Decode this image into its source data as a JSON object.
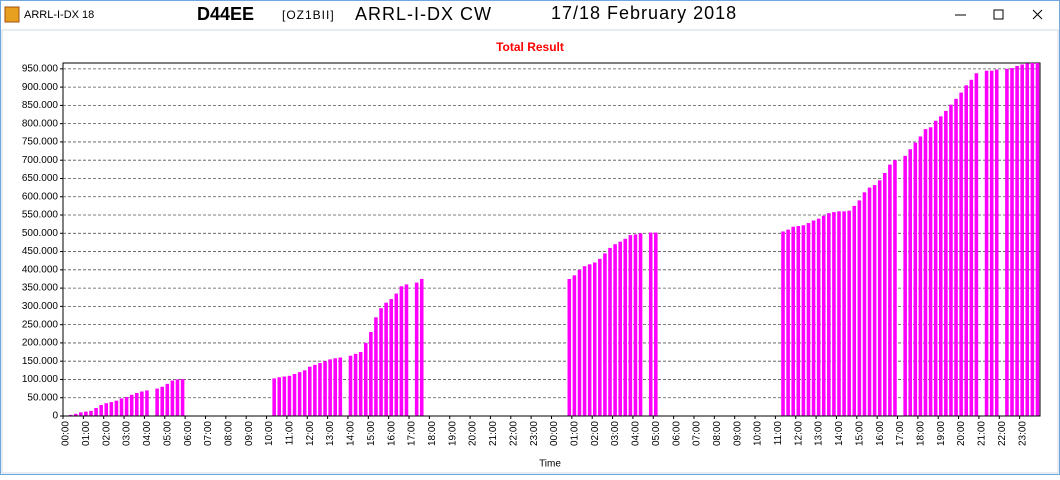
{
  "window": {
    "app": "ARRL-I-DX 18",
    "call": "D44EE",
    "operator": "[OZ1BII]",
    "contest": "ARRL-I-DX CW",
    "date": "17/18 February 2018"
  },
  "chart_data": {
    "type": "bar",
    "title": "Total Result",
    "x_label": "Time",
    "color": "#ff00ff",
    "grid": true,
    "ylim": [
      0,
      966000
    ],
    "yticks": [
      0,
      {
        "value": 50000,
        "label": "50.000"
      },
      {
        "value": 100000,
        "label": "100.000"
      },
      {
        "value": 150000,
        "label": "150.000"
      },
      {
        "value": 200000,
        "label": "200.000"
      },
      {
        "value": 250000,
        "label": "250.000"
      },
      {
        "value": 300000,
        "label": "300.000"
      },
      {
        "value": 350000,
        "label": "350.000"
      },
      {
        "value": 400000,
        "label": "400.000"
      },
      {
        "value": 450000,
        "label": "450.000"
      },
      {
        "value": 500000,
        "label": "500.000"
      },
      {
        "value": 550000,
        "label": "550.000"
      },
      {
        "value": 600000,
        "label": "600.000"
      },
      {
        "value": 650000,
        "label": "650.000"
      },
      {
        "value": 700000,
        "label": "700.000"
      },
      {
        "value": 750000,
        "label": "750.000"
      },
      {
        "value": 800000,
        "label": "800.000"
      },
      {
        "value": 850000,
        "label": "850.000"
      },
      {
        "value": 900000,
        "label": "900.000"
      },
      {
        "value": 950000,
        "label": "950.000"
      }
    ],
    "categories": [
      "00:00",
      null,
      null,
      null,
      "01:00",
      null,
      null,
      null,
      "02:00",
      null,
      null,
      null,
      "03:00",
      null,
      null,
      null,
      "04:00",
      null,
      null,
      null,
      "05:00",
      null,
      null,
      null,
      "06:00",
      null,
      null,
      null,
      "07:00",
      null,
      null,
      null,
      "08:00",
      null,
      null,
      null,
      "09:00",
      null,
      null,
      null,
      "10:00",
      null,
      null,
      null,
      "11:00",
      null,
      null,
      null,
      "12:00",
      null,
      null,
      null,
      "13:00",
      null,
      null,
      null,
      "14:00",
      null,
      null,
      null,
      "15:00",
      null,
      null,
      null,
      "16:00",
      null,
      null,
      null,
      "17:00",
      null,
      null,
      null,
      "18:00",
      null,
      null,
      null,
      "19:00",
      null,
      null,
      null,
      "20:00",
      null,
      null,
      null,
      "21:00",
      null,
      null,
      null,
      "22:00",
      null,
      null,
      null,
      "23:00",
      null,
      null,
      null,
      "00:00",
      null,
      null,
      null,
      "01:00",
      null,
      null,
      null,
      "02:00",
      null,
      null,
      null,
      "03:00",
      null,
      null,
      null,
      "04:00",
      null,
      null,
      null,
      "05:00",
      null,
      null,
      null,
      "06:00",
      null,
      null,
      null,
      "07:00",
      null,
      null,
      null,
      "08:00",
      null,
      null,
      null,
      "09:00",
      null,
      null,
      null,
      "10:00",
      null,
      null,
      null,
      "11:00",
      null,
      null,
      null,
      "12:00",
      null,
      null,
      null,
      "13:00",
      null,
      null,
      null,
      "14:00",
      null,
      null,
      null,
      "15:00",
      null,
      null,
      null,
      "16:00",
      null,
      null,
      null,
      "17:00",
      null,
      null,
      null,
      "18:00",
      null,
      null,
      null,
      "19:00",
      null,
      null,
      null,
      "20:00",
      null,
      null,
      null,
      "21:00",
      null,
      null,
      null,
      "22:00",
      null,
      null,
      null,
      "23:00",
      null,
      null,
      null
    ],
    "values": [
      null,
      3000,
      6000,
      10000,
      12000,
      14000,
      22000,
      30000,
      35000,
      38000,
      42000,
      48000,
      52000,
      58000,
      63000,
      67000,
      70000,
      null,
      75000,
      80000,
      88000,
      97000,
      100000,
      101000,
      null,
      null,
      null,
      null,
      null,
      null,
      null,
      null,
      null,
      null,
      null,
      null,
      null,
      null,
      null,
      null,
      null,
      103000,
      106000,
      108000,
      110000,
      115000,
      120000,
      125000,
      135000,
      140000,
      145000,
      150000,
      155000,
      158000,
      160000,
      null,
      165000,
      170000,
      175000,
      200000,
      230000,
      270000,
      295000,
      310000,
      320000,
      335000,
      355000,
      360000,
      null,
      365000,
      375000,
      null,
      null,
      null,
      null,
      null,
      null,
      null,
      null,
      null,
      null,
      null,
      null,
      null,
      null,
      null,
      null,
      null,
      null,
      null,
      null,
      null,
      null,
      null,
      null,
      null,
      null,
      null,
      null,
      375000,
      385000,
      400000,
      410000,
      415000,
      420000,
      430000,
      445000,
      460000,
      470000,
      477000,
      485000,
      495000,
      497000,
      500000,
      null,
      502000,
      502000,
      null,
      null,
      null,
      null,
      null,
      null,
      null,
      null,
      null,
      null,
      null,
      null,
      null,
      null,
      null,
      null,
      null,
      null,
      null,
      null,
      null,
      null,
      null,
      null,
      505000,
      510000,
      518000,
      520000,
      522000,
      528000,
      535000,
      540000,
      548000,
      555000,
      558000,
      560000,
      560000,
      562000,
      575000,
      590000,
      612000,
      625000,
      632000,
      645000,
      665000,
      688000,
      700000,
      null,
      712000,
      730000,
      748000,
      765000,
      785000,
      790000,
      808000,
      820000,
      835000,
      852000,
      868000,
      885000,
      905000,
      920000,
      938000,
      null,
      945000,
      945000,
      948000,
      null,
      950000,
      952000,
      958000,
      962000,
      965000,
      966000,
      966000
    ]
  }
}
